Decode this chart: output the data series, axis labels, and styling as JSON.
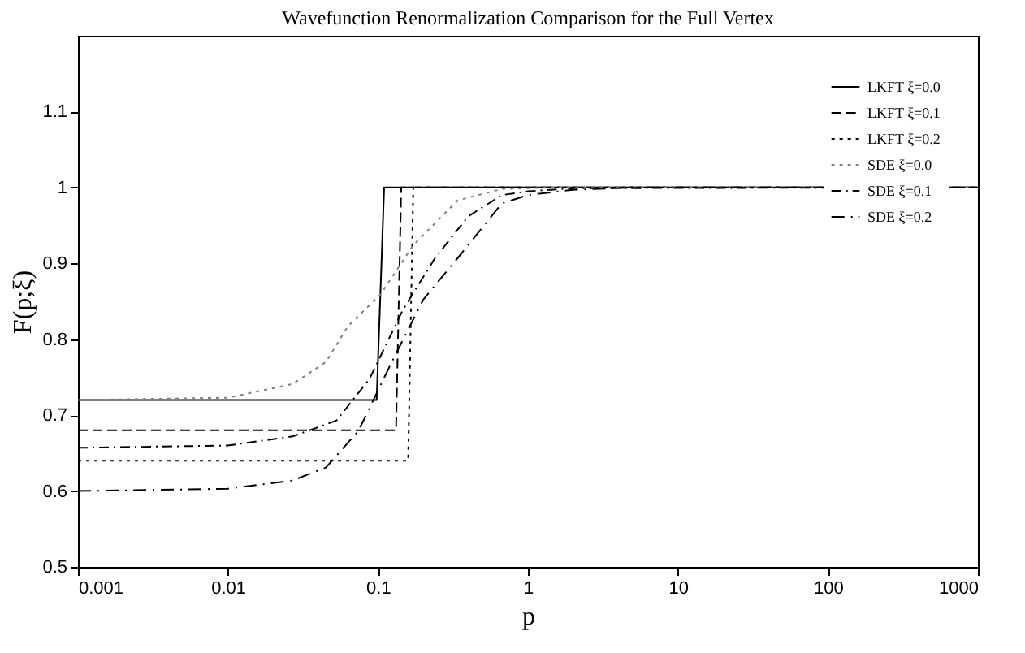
{
  "chart_data": {
    "type": "line",
    "title": "Wavefunction Renormalization Comparison for the Full Vertex",
    "xlabel": "p",
    "ylabel": "F(p;ξ)",
    "log": "x",
    "xlim": [
      0.001,
      1000
    ],
    "xticks": [
      0.001,
      0.01,
      0.1,
      1,
      10,
      100,
      1000
    ],
    "ylim": [
      0.5,
      1.2
    ],
    "yticks": [
      0.5,
      0.6,
      0.7,
      0.8,
      0.9,
      1,
      1.1
    ],
    "grid": false,
    "legend": "top right",
    "marker": "none",
    "series": [
      {
        "name": "LKFT ξ=0.0",
        "color": "#000000",
        "line_style": "solid",
        "x": [
          0.001,
          0.098,
          0.11,
          1000
        ],
        "values": [
          0.72,
          0.72,
          1,
          1
        ]
      },
      {
        "name": "LKFT ξ=0.1",
        "color": "#000000",
        "line_style": "dashed",
        "x": [
          0.001,
          0.132,
          0.143,
          1000
        ],
        "values": [
          0.68,
          0.68,
          1,
          1
        ]
      },
      {
        "name": "LKFT ξ=0.2",
        "color": "#000000",
        "line_style": "dotted",
        "x": [
          0.001,
          0.159,
          0.172,
          1000
        ],
        "values": [
          0.64,
          0.64,
          1,
          1
        ]
      },
      {
        "name": "SDE  ξ=0.0",
        "color": "#808080",
        "line_style": "dotted",
        "x": [
          0.001,
          0.01,
          0.027,
          0.045,
          0.063,
          0.104,
          0.172,
          0.34,
          0.67,
          1.5,
          1000
        ],
        "values": [
          0.72,
          0.723,
          0.741,
          0.77,
          0.817,
          0.859,
          0.924,
          0.983,
          0.998,
          1,
          1
        ]
      },
      {
        "name": "SDE ξ=0.1",
        "color": "#000000",
        "line_style": "dashdot",
        "x": [
          0.001,
          0.01,
          0.027,
          0.053,
          0.088,
          0.146,
          0.24,
          0.4,
          0.67,
          1,
          2,
          1000
        ],
        "values": [
          0.657,
          0.66,
          0.672,
          0.693,
          0.748,
          0.838,
          0.907,
          0.962,
          0.99,
          0.995,
          0.999,
          1
        ]
      },
      {
        "name": "SDE ξ=0.2",
        "color": "#000000",
        "line_style": "longdashdot",
        "x": [
          0.001,
          0.01,
          0.027,
          0.045,
          0.074,
          0.123,
          0.2,
          0.34,
          0.67,
          1,
          2,
          5,
          1000
        ],
        "values": [
          0.6,
          0.603,
          0.614,
          0.631,
          0.679,
          0.769,
          0.852,
          0.907,
          0.979,
          0.99,
          0.997,
          1,
          1
        ]
      }
    ]
  }
}
